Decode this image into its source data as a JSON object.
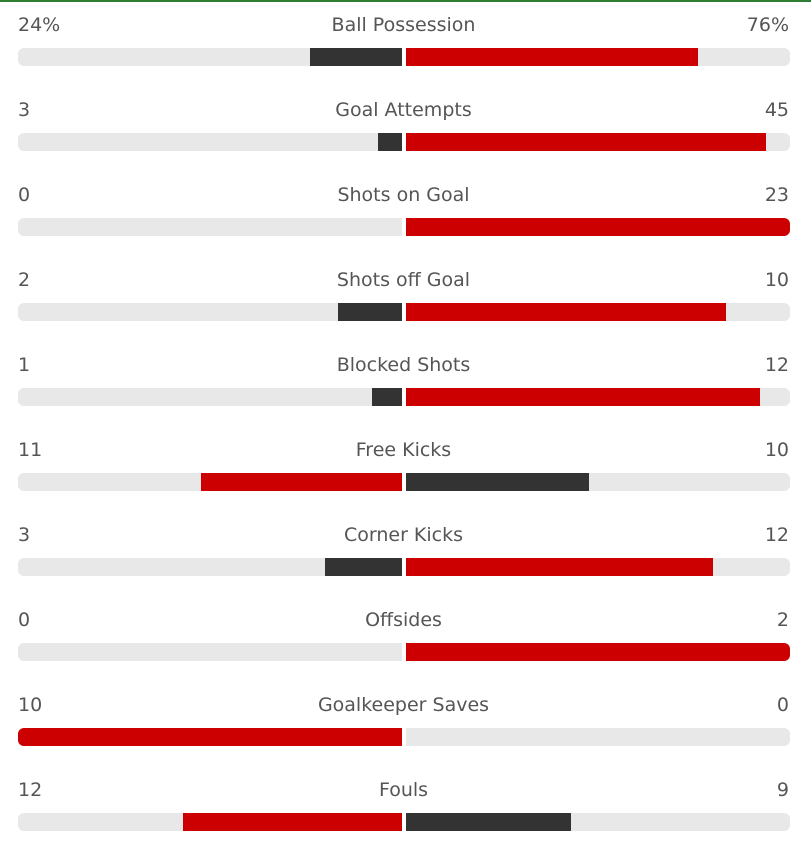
{
  "colors": {
    "winner": "#cc0000",
    "loser": "#333333",
    "track": "#e8e8e8"
  },
  "stats": [
    {
      "name": "Ball Possession",
      "home": "24%",
      "away": "76%",
      "home_share": 0.24,
      "away_share": 0.76
    },
    {
      "name": "Goal Attempts",
      "home": "3",
      "away": "45",
      "home_share": 0.0625,
      "away_share": 0.9375
    },
    {
      "name": "Shots on Goal",
      "home": "0",
      "away": "23",
      "home_share": 0,
      "away_share": 1
    },
    {
      "name": "Shots off Goal",
      "home": "2",
      "away": "10",
      "home_share": 0.1667,
      "away_share": 0.8333
    },
    {
      "name": "Blocked Shots",
      "home": "1",
      "away": "12",
      "home_share": 0.0769,
      "away_share": 0.9231
    },
    {
      "name": "Free Kicks",
      "home": "11",
      "away": "10",
      "home_share": 0.5238,
      "away_share": 0.4762
    },
    {
      "name": "Corner Kicks",
      "home": "3",
      "away": "12",
      "home_share": 0.2,
      "away_share": 0.8
    },
    {
      "name": "Offsides",
      "home": "0",
      "away": "2",
      "home_share": 0,
      "away_share": 1
    },
    {
      "name": "Goalkeeper Saves",
      "home": "10",
      "away": "0",
      "home_share": 1,
      "away_share": 0
    },
    {
      "name": "Fouls",
      "home": "12",
      "away": "9",
      "home_share": 0.5714,
      "away_share": 0.4286
    }
  ]
}
